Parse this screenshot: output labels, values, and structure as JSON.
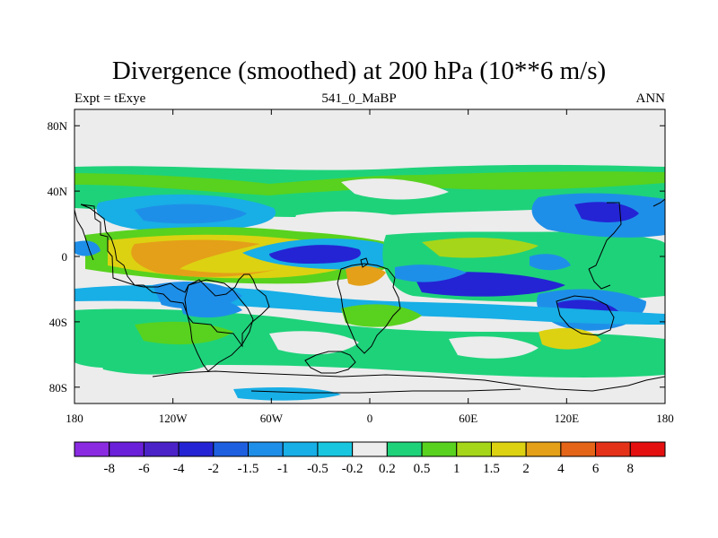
{
  "header": {
    "title": "Divergence (smoothed) at 200 hPa (10**6 m/s)",
    "left": "Expt = tExye",
    "center": "541_0_MaBP",
    "right": "ANN"
  },
  "axes": {
    "lon_ticks": [
      {
        "value": -180,
        "label": "180"
      },
      {
        "value": -120,
        "label": "120W"
      },
      {
        "value": -60,
        "label": "60W"
      },
      {
        "value": 0,
        "label": "0"
      },
      {
        "value": 60,
        "label": "60E"
      },
      {
        "value": 120,
        "label": "120E"
      },
      {
        "value": 180,
        "label": "180"
      }
    ],
    "lat_ticks": [
      {
        "value": 80,
        "label": "80N"
      },
      {
        "value": 40,
        "label": "40N"
      },
      {
        "value": 0,
        "label": "0"
      },
      {
        "value": -40,
        "label": "40S"
      },
      {
        "value": -80,
        "label": "80S"
      }
    ],
    "lon_range": [
      -180,
      180
    ],
    "lat_range": [
      -90,
      90
    ]
  },
  "colorbar": {
    "colors": [
      "#8a2be2",
      "#6a1fd9",
      "#4b22c8",
      "#2424d4",
      "#1e5fe0",
      "#1e8fe8",
      "#18aee6",
      "#18c6e0",
      "#ececec",
      "#1ed27a",
      "#58d21e",
      "#a6d619",
      "#dcd212",
      "#e4a018",
      "#e46418",
      "#e43218",
      "#e41010"
    ],
    "labels": [
      "-8",
      "-6",
      "-4",
      "-2",
      "-1.5",
      "-1",
      "-0.5",
      "-0.2",
      "0.2",
      "0.5",
      "1",
      "1.5",
      "2",
      "4",
      "6",
      "8"
    ]
  },
  "chart_data": {
    "type": "heatmap",
    "title": "Divergence (smoothed) at 200 hPa (10**6 m/s)",
    "levels": [
      -8,
      -6,
      -4,
      -2,
      -1.5,
      -1,
      -0.5,
      -0.2,
      0.2,
      0.5,
      1,
      1.5,
      2,
      4,
      6,
      8
    ],
    "features": [
      {
        "lon": -180,
        "lat": 48,
        "value": 0.5
      },
      {
        "lon": -120,
        "lat": 22,
        "value": -1
      },
      {
        "lon": -110,
        "lat": 24,
        "value": -1.5
      },
      {
        "lon": -120,
        "lat": 6,
        "value": 1
      },
      {
        "lon": -95,
        "lat": 5,
        "value": 2
      },
      {
        "lon": -75,
        "lat": -8,
        "value": 4
      },
      {
        "lon": -30,
        "lat": 0,
        "value": -4
      },
      {
        "lon": -25,
        "lat": 2,
        "value": -2
      },
      {
        "lon": 5,
        "lat": -12,
        "value": 4
      },
      {
        "lon": 15,
        "lat": -18,
        "value": -2
      },
      {
        "lon": 40,
        "lat": 5,
        "value": 1.5
      },
      {
        "lon": 65,
        "lat": -16,
        "value": -4
      },
      {
        "lon": 105,
        "lat": -32,
        "value": -4
      },
      {
        "lon": 120,
        "lat": -52,
        "value": 2
      },
      {
        "lon": 150,
        "lat": 25,
        "value": -1.5
      },
      {
        "lon": -80,
        "lat": -50,
        "value": 1
      },
      {
        "lon": 10,
        "lat": -35,
        "value": 1.5
      },
      {
        "lon": -110,
        "lat": -65,
        "value": 0.5
      },
      {
        "lon": -30,
        "lat": -65,
        "value": 1
      },
      {
        "lon": -120,
        "lat": -35,
        "value": -1.5
      }
    ]
  }
}
